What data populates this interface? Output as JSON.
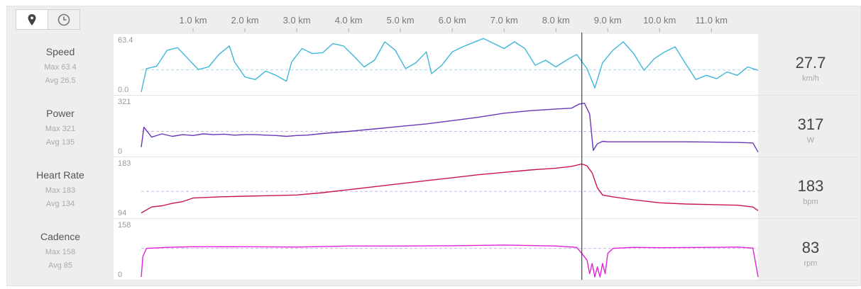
{
  "toggle": {
    "map_icon": "map-pin-icon",
    "time_icon": "clock-icon"
  },
  "colors": {
    "speed": "#3fb7d9",
    "power": "#6a36b8",
    "heart_rate": "#c8134f",
    "cadence": "#e022d8",
    "cursor": "#222222",
    "avg_line": "#c9b5e6"
  },
  "panels": [
    {
      "key": "speed",
      "name": "Speed",
      "max_text": "Max 63.4",
      "avg_text": "Avg 26.5",
      "ytop": "63.4",
      "ybot": "0.0",
      "current": "27.7",
      "unit": "km/h"
    },
    {
      "key": "power",
      "name": "Power",
      "max_text": "Max 321",
      "avg_text": "Avg 135",
      "ytop": "321",
      "ybot": "0",
      "current": "317",
      "unit": "W"
    },
    {
      "key": "heart_rate",
      "name": "Heart Rate",
      "max_text": "Max 183",
      "avg_text": "Avg 134",
      "ytop": "183",
      "ybot": "94",
      "current": "183",
      "unit": "bpm"
    },
    {
      "key": "cadence",
      "name": "Cadence",
      "max_text": "Max 158",
      "avg_text": "Avg 85",
      "ytop": "158",
      "ybot": "0",
      "current": "83",
      "unit": "rpm"
    }
  ],
  "chart_data": {
    "type": "line",
    "x_unit": "km",
    "xlim": [
      0,
      11.9
    ],
    "ticks": [
      "1.0 km",
      "2.0 km",
      "3.0 km",
      "4.0 km",
      "5.0 km",
      "6.0 km",
      "7.0 km",
      "8.0 km",
      "9.0 km",
      "10.0 km",
      "11.0 km"
    ],
    "tick_values": [
      1,
      2,
      3,
      4,
      5,
      6,
      7,
      8,
      9,
      10,
      11
    ],
    "cursor_x": 8.5,
    "series": [
      {
        "name": "Speed",
        "ylim": [
          0,
          63.4
        ],
        "avg": 26.5,
        "x": [
          0,
          0.1,
          0.3,
          0.5,
          0.7,
          0.9,
          1.1,
          1.3,
          1.5,
          1.7,
          1.8,
          2.0,
          2.2,
          2.4,
          2.6,
          2.8,
          2.9,
          3.1,
          3.3,
          3.5,
          3.7,
          3.9,
          4.1,
          4.3,
          4.5,
          4.7,
          4.9,
          5.1,
          5.3,
          5.5,
          5.6,
          5.8,
          6.0,
          6.2,
          6.4,
          6.6,
          6.8,
          7.0,
          7.2,
          7.4,
          7.6,
          7.8,
          8.0,
          8.2,
          8.4,
          8.6,
          8.75,
          8.9,
          9.1,
          9.3,
          9.5,
          9.7,
          9.9,
          10.1,
          10.3,
          10.5,
          10.7,
          10.9,
          11.1,
          11.3,
          11.5,
          11.7,
          11.9
        ],
        "values": [
          0,
          28,
          31,
          50,
          53,
          40,
          27,
          30,
          45,
          55,
          36,
          18,
          15,
          25,
          20,
          13,
          36,
          52,
          46,
          47,
          58,
          55,
          43,
          30,
          38,
          60,
          50,
          28,
          35,
          48,
          22,
          32,
          48,
          54,
          59,
          64,
          58,
          52,
          60,
          52,
          32,
          38,
          30,
          38,
          45,
          28,
          5,
          35,
          50,
          60,
          46,
          26,
          40,
          48,
          54,
          34,
          15,
          20,
          16,
          24,
          20,
          30,
          26
        ]
      },
      {
        "name": "Power",
        "ylim": [
          0,
          321
        ],
        "avg": 135,
        "x": [
          0,
          0.05,
          0.2,
          0.4,
          0.6,
          0.8,
          1.0,
          1.2,
          1.4,
          1.6,
          1.8,
          2.0,
          2.2,
          2.4,
          2.6,
          2.8,
          3.0,
          3.2,
          3.5,
          4.0,
          4.5,
          5.0,
          5.5,
          6.0,
          6.5,
          7.0,
          7.5,
          8.0,
          8.3,
          8.45,
          8.55,
          8.65,
          8.72,
          8.8,
          8.9,
          9.0,
          9.5,
          10.0,
          10.5,
          11.0,
          11.5,
          11.8,
          11.9
        ],
        "values": [
          40,
          160,
          100,
          120,
          105,
          115,
          110,
          120,
          115,
          118,
          112,
          115,
          115,
          112,
          110,
          105,
          110,
          112,
          122,
          135,
          150,
          165,
          180,
          200,
          220,
          245,
          260,
          270,
          275,
          300,
          305,
          240,
          20,
          60,
          75,
          72,
          72,
          72,
          72,
          70,
          68,
          65,
          10
        ]
      },
      {
        "name": "Heart Rate",
        "ylim": [
          94,
          183
        ],
        "avg": 134,
        "x": [
          0,
          0.2,
          0.4,
          0.6,
          0.8,
          1.0,
          1.5,
          2.0,
          2.5,
          3.0,
          3.5,
          4.0,
          4.5,
          5.0,
          5.5,
          6.0,
          6.5,
          7.0,
          7.5,
          8.0,
          8.3,
          8.5,
          8.6,
          8.7,
          8.8,
          8.9,
          9.1,
          9.5,
          10.0,
          10.5,
          11.0,
          11.5,
          11.8,
          11.9
        ],
        "values": [
          98,
          108,
          110,
          114,
          117,
          123,
          125,
          126,
          127,
          128,
          132,
          137,
          142,
          147,
          152,
          157,
          162,
          166,
          170,
          173,
          176,
          180,
          177,
          165,
          140,
          128,
          125,
          120,
          115,
          113,
          112,
          111,
          108,
          102
        ]
      },
      {
        "name": "Cadence",
        "ylim": [
          0,
          158
        ],
        "avg": 85,
        "x": [
          0,
          0.03,
          0.1,
          0.5,
          1.0,
          2.0,
          3.0,
          4.0,
          5.0,
          6.0,
          7.0,
          8.0,
          8.4,
          8.5,
          8.6,
          8.65,
          8.7,
          8.75,
          8.8,
          8.85,
          8.9,
          8.95,
          9.0,
          9.1,
          9.5,
          10.0,
          11.0,
          11.5,
          11.8,
          11.9
        ],
        "values": [
          0,
          60,
          85,
          88,
          90,
          90,
          89,
          92,
          92,
          93,
          95,
          92,
          88,
          70,
          50,
          10,
          40,
          0,
          30,
          0,
          40,
          10,
          70,
          85,
          88,
          87,
          88,
          89,
          86,
          0
        ]
      }
    ]
  }
}
